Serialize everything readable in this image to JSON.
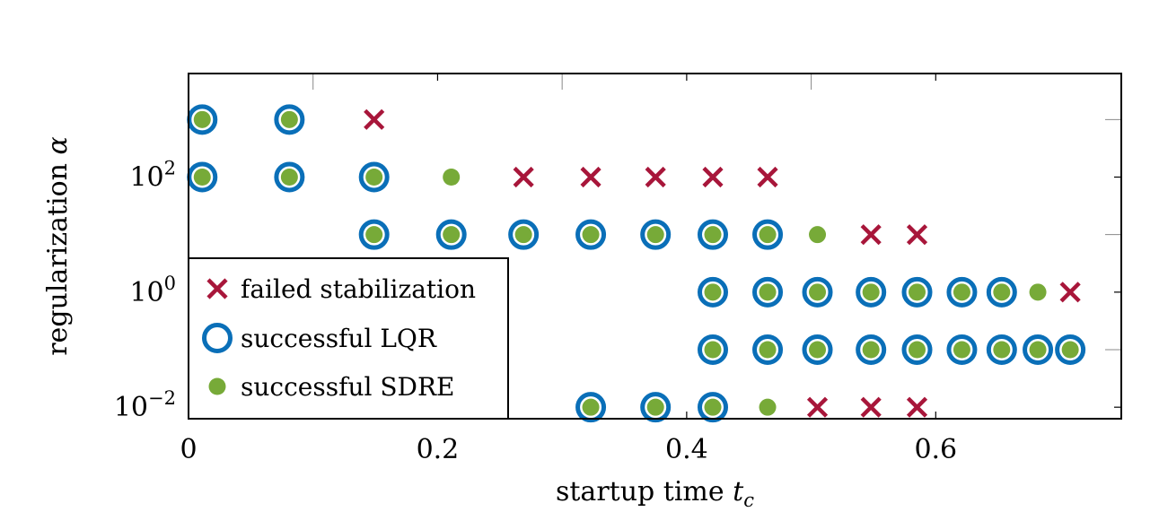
{
  "chart_data": {
    "type": "scatter",
    "xlabel": "startup time t_c",
    "ylabel": "regularization α",
    "xlim": [
      0,
      0.749
    ],
    "ylog": true,
    "ylim": [
      0.00631,
      6310
    ],
    "x_ticks": [
      {
        "value": 0,
        "label": "0"
      },
      {
        "value": 0.2,
        "label": "0.2"
      },
      {
        "value": 0.4,
        "label": "0.4"
      },
      {
        "value": 0.6,
        "label": "0.6"
      }
    ],
    "y_ticks": [
      {
        "value": 0.01,
        "base": "10",
        "exp": "−2"
      },
      {
        "value": 1,
        "base": "10",
        "exp": "0"
      },
      {
        "value": 100,
        "base": "10",
        "exp": "2"
      }
    ],
    "y_minor_ticks": [
      0.1,
      10,
      1000
    ],
    "x_minor_ticks": [
      0.1,
      0.3,
      0.5
    ],
    "legend": {
      "position": "bottom-left",
      "entries": [
        {
          "marker": "cross",
          "label": "failed stabilization"
        },
        {
          "marker": "ring",
          "label": "successful LQR"
        },
        {
          "marker": "dot",
          "label": "successful SDRE"
        }
      ]
    },
    "colors": {
      "failed": "#a8163a",
      "lqr": "#0a6fb8",
      "sdre": "#77aa38"
    },
    "series": [
      {
        "name": "failed stabilization",
        "marker": "cross",
        "points": [
          [
            0.149,
            1000
          ],
          [
            0.269,
            100
          ],
          [
            0.323,
            100
          ],
          [
            0.375,
            100
          ],
          [
            0.421,
            100
          ],
          [
            0.465,
            100
          ],
          [
            0.548,
            10
          ],
          [
            0.585,
            10
          ],
          [
            0.708,
            1
          ],
          [
            0.505,
            0.01
          ],
          [
            0.548,
            0.01
          ],
          [
            0.585,
            0.01
          ]
        ]
      },
      {
        "name": "successful LQR",
        "marker": "ring",
        "points": [
          [
            0.011,
            1000
          ],
          [
            0.081,
            1000
          ],
          [
            0.011,
            100
          ],
          [
            0.081,
            100
          ],
          [
            0.149,
            100
          ],
          [
            0.149,
            10
          ],
          [
            0.211,
            10
          ],
          [
            0.269,
            10
          ],
          [
            0.323,
            10
          ],
          [
            0.375,
            10
          ],
          [
            0.421,
            10
          ],
          [
            0.465,
            10
          ],
          [
            0.421,
            1
          ],
          [
            0.465,
            1
          ],
          [
            0.505,
            1
          ],
          [
            0.548,
            1
          ],
          [
            0.585,
            1
          ],
          [
            0.621,
            1
          ],
          [
            0.653,
            1
          ],
          [
            0.421,
            0.1
          ],
          [
            0.465,
            0.1
          ],
          [
            0.505,
            0.1
          ],
          [
            0.548,
            0.1
          ],
          [
            0.585,
            0.1
          ],
          [
            0.621,
            0.1
          ],
          [
            0.653,
            0.1
          ],
          [
            0.682,
            0.1
          ],
          [
            0.708,
            0.1
          ],
          [
            0.323,
            0.01
          ],
          [
            0.375,
            0.01
          ],
          [
            0.421,
            0.01
          ]
        ]
      },
      {
        "name": "successful SDRE",
        "marker": "dot",
        "points": [
          [
            0.011,
            1000
          ],
          [
            0.081,
            1000
          ],
          [
            0.011,
            100
          ],
          [
            0.081,
            100
          ],
          [
            0.149,
            100
          ],
          [
            0.211,
            100
          ],
          [
            0.149,
            10
          ],
          [
            0.211,
            10
          ],
          [
            0.269,
            10
          ],
          [
            0.323,
            10
          ],
          [
            0.375,
            10
          ],
          [
            0.421,
            10
          ],
          [
            0.465,
            10
          ],
          [
            0.505,
            10
          ],
          [
            0.421,
            1
          ],
          [
            0.465,
            1
          ],
          [
            0.505,
            1
          ],
          [
            0.548,
            1
          ],
          [
            0.585,
            1
          ],
          [
            0.621,
            1
          ],
          [
            0.653,
            1
          ],
          [
            0.682,
            1
          ],
          [
            0.421,
            0.1
          ],
          [
            0.465,
            0.1
          ],
          [
            0.505,
            0.1
          ],
          [
            0.548,
            0.1
          ],
          [
            0.585,
            0.1
          ],
          [
            0.621,
            0.1
          ],
          [
            0.653,
            0.1
          ],
          [
            0.682,
            0.1
          ],
          [
            0.708,
            0.1
          ],
          [
            0.323,
            0.01
          ],
          [
            0.375,
            0.01
          ],
          [
            0.421,
            0.01
          ],
          [
            0.465,
            0.01
          ]
        ]
      }
    ]
  }
}
